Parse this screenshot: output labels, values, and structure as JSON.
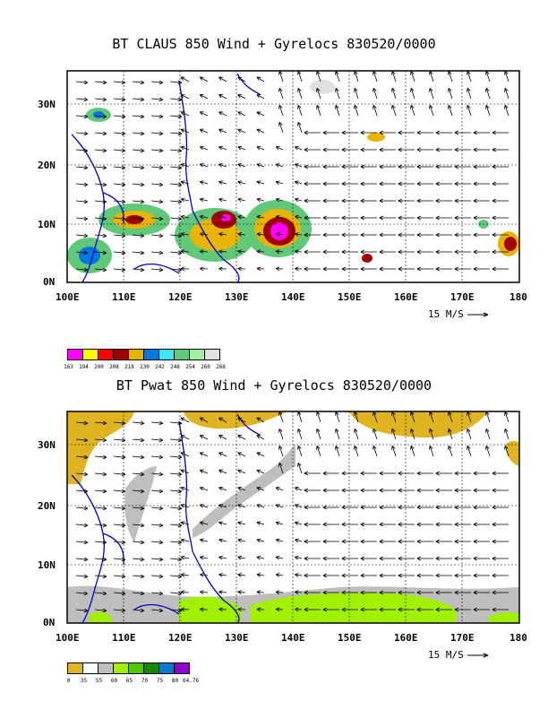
{
  "panels": [
    {
      "title": "BT CLAUS 850 Wind + Gyrelocs 830520/0000",
      "lat_labels": [
        "30N",
        "20N",
        "10N",
        "0N"
      ],
      "lon_labels": [
        "100E",
        "110E",
        "120E",
        "130E",
        "140E",
        "150E",
        "160E",
        "170E",
        "180"
      ],
      "ref_vector_label": "15 M/S",
      "legend": {
        "colors": [
          "#ff00ff",
          "#ffff00",
          "#ff0000",
          "#a00000",
          "#e8b400",
          "#0078e0",
          "#40e8f0",
          "#60c878",
          "#a0f0a0",
          "#e0e0e0"
        ],
        "labels": [
          "163",
          "194",
          "200",
          "208",
          "218",
          "230",
          "242",
          "248",
          "254",
          "260",
          "268"
        ]
      }
    },
    {
      "title": "BT Pwat 850 Wind + Gyrelocs 830520/0000",
      "lat_labels": [
        "30N",
        "20N",
        "10N",
        "0N"
      ],
      "lon_labels": [
        "100E",
        "110E",
        "120E",
        "130E",
        "140E",
        "150E",
        "160E",
        "170E",
        "180"
      ],
      "ref_vector_label": "15 M/S",
      "legend": {
        "colors": [
          "#e0b420",
          "#ffffff",
          "#bebebe",
          "#a0f000",
          "#50c800",
          "#148c00",
          "#0078d0",
          "#8c00d0"
        ],
        "labels": [
          "0",
          "35",
          "55",
          "60",
          "65",
          "70",
          "75",
          "80",
          "64.76"
        ]
      }
    }
  ]
}
